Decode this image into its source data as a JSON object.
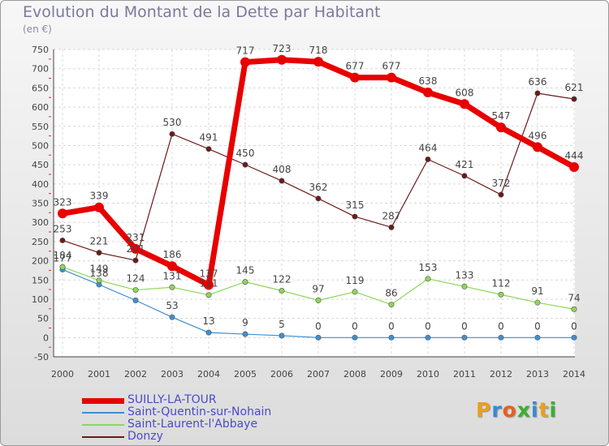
{
  "header": {
    "title": "Evolution du Montant de la Dette par Habitant",
    "unit": "(en €)"
  },
  "logo": {
    "text": "Proxiti",
    "letters": [
      "P",
      "r",
      "o",
      "x",
      "i",
      "t",
      "i"
    ],
    "colors": [
      "#e8a020",
      "#3a8ad0",
      "#e86020",
      "#3ab030",
      "#3a8ad0",
      "#e8a020",
      "#3ab030"
    ]
  },
  "chart_data": {
    "type": "line",
    "title": "Evolution du Montant de la Dette par Habitant",
    "ylabel": "(en €)",
    "xlabel": "",
    "x": [
      "2000",
      "2001",
      "2002",
      "2003",
      "2004",
      "2005",
      "2006",
      "2007",
      "2008",
      "2009",
      "2010",
      "2011",
      "2012",
      "2013",
      "2014"
    ],
    "ylim": [
      -50,
      750
    ],
    "yticks": [
      "-50",
      "0",
      "50",
      "100",
      "150",
      "200",
      "250",
      "300",
      "350",
      "400",
      "450",
      "500",
      "550",
      "600",
      "650",
      "700",
      "750"
    ],
    "grid": true,
    "legend_position": "bottom-left",
    "series": [
      {
        "name": "SUILLY-LA-TOUR",
        "color": "#e80000",
        "width": 7,
        "values": [
          323,
          339,
          231,
          186,
          137,
          717,
          723,
          718,
          677,
          677,
          638,
          608,
          547,
          496,
          444
        ],
        "labels": [
          "323",
          "339",
          "231",
          "186",
          "137",
          "717",
          "723",
          "718",
          "677",
          "677",
          "638",
          "608",
          "547",
          "496",
          "444"
        ]
      },
      {
        "name": "Saint-Quentin-sur-Nohain",
        "color": "#3f8fd1",
        "width": 1.2,
        "values": [
          177,
          138,
          97,
          53,
          13,
          9,
          5,
          0,
          0,
          0,
          0,
          0,
          0,
          0,
          0
        ],
        "labels": [
          "177",
          "138",
          "",
          "53",
          "13",
          "9",
          "5",
          "0",
          "0",
          "0",
          "0",
          "0",
          "0",
          "0",
          "0"
        ]
      },
      {
        "name": "Saint-Laurent-l'Abbaye",
        "color": "#8ed65a",
        "width": 1.2,
        "values": [
          184,
          149,
          124,
          131,
          111,
          145,
          122,
          97,
          119,
          86,
          153,
          133,
          112,
          91,
          74
        ],
        "labels": [
          "184",
          "149",
          "124",
          "131",
          "111",
          "145",
          "122",
          "97",
          "119",
          "86",
          "153",
          "133",
          "112",
          "91",
          "74"
        ]
      },
      {
        "name": "Donzy",
        "color": "#6b1a1a",
        "width": 1.2,
        "values": [
          253,
          221,
          201,
          530,
          491,
          450,
          408,
          362,
          315,
          287,
          464,
          421,
          372,
          636,
          621
        ],
        "labels": [
          "253",
          "221",
          "201",
          "530",
          "491",
          "450",
          "408",
          "362",
          "315",
          "287",
          "464",
          "421",
          "372",
          "636",
          "621"
        ]
      }
    ]
  }
}
